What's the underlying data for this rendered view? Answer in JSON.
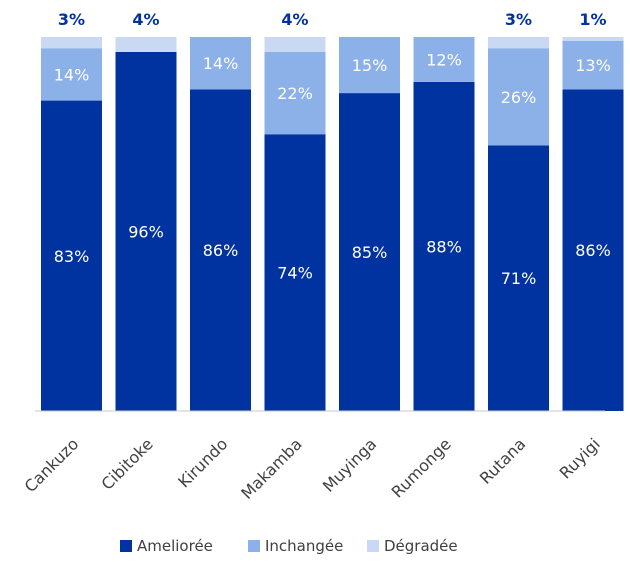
{
  "chart_data": {
    "type": "bar",
    "stacked": true,
    "categories": [
      "Cankuzo",
      "Cibitoke",
      "Kirundo",
      "Makamba",
      "Muyinga",
      "Rumonge",
      "Rutana",
      "Ruyigi"
    ],
    "series": [
      {
        "name": "Ameliorée",
        "values": [
          83,
          96,
          86,
          74,
          85,
          88,
          71,
          86
        ],
        "labels": [
          "83%",
          "96%",
          "86%",
          "74%",
          "85%",
          "88%",
          "71%",
          "86%"
        ],
        "color": "#0033a0"
      },
      {
        "name": "Inchangée",
        "values": [
          14,
          0,
          14,
          22,
          15,
          12,
          26,
          13
        ],
        "labels": [
          "14%",
          "",
          "14%",
          "22%",
          "15%",
          "12%",
          "26%",
          "13%"
        ],
        "color": "#8cb0e8"
      },
      {
        "name": "Dégradée",
        "values": [
          3,
          4,
          0,
          4,
          0,
          0,
          3,
          1
        ],
        "labels": [
          "3%",
          "4%",
          "",
          "4%",
          "",
          "",
          "3%",
          "1%"
        ],
        "color": "#c9d9f3"
      }
    ],
    "ylim": [
      0,
      100
    ],
    "grid": false,
    "legend": "bottom",
    "title": "",
    "xlabel": "",
    "ylabel": ""
  }
}
